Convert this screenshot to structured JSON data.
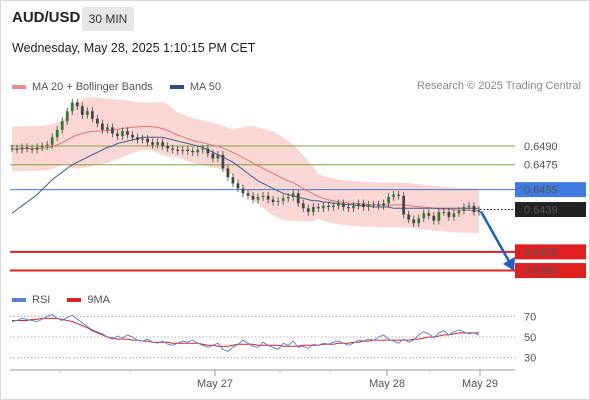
{
  "header": {
    "symbol": "AUD/USD",
    "interval": "30 MIN",
    "timestamp": "Wednesday, May 28, 2025 1:10:15 PM CET"
  },
  "legend": {
    "bollinger": {
      "label": "MA 20 + Bollinger Bands",
      "color": "#f28b82"
    },
    "ma50": {
      "label": "MA 50",
      "color": "#2c4e8a"
    },
    "copyright": "Research © 2025 Trading Central"
  },
  "rsi_legend": {
    "rsi": {
      "label": "RSI",
      "color": "#5b7fd6"
    },
    "ma9": {
      "label": "9MA",
      "color": "#e02020"
    }
  },
  "chart_data": {
    "type": "candlestick",
    "price_axis": {
      "min": 0.638,
      "max": 0.6535
    },
    "x_labels": [
      "May 27",
      "May 28",
      "May 29"
    ],
    "levels": [
      {
        "value": 0.649,
        "label": "0.6490",
        "kind": "target",
        "color": "#7aa83c"
      },
      {
        "value": 0.6475,
        "label": "0.6475",
        "kind": "target",
        "color": "#7aa83c"
      },
      {
        "value": 0.6455,
        "label": "0.6455",
        "kind": "pivot",
        "color": "#3d7be0"
      },
      {
        "value": 0.6439,
        "label": "0.6439",
        "kind": "last",
        "color": "#222222"
      },
      {
        "value": 0.6405,
        "label": "0.6405",
        "kind": "support",
        "color": "#e02020"
      },
      {
        "value": 0.639,
        "label": "0.6390",
        "kind": "support",
        "color": "#e02020"
      }
    ],
    "closes": [
      0.6488,
      0.6487,
      0.6489,
      0.6488,
      0.6487,
      0.6489,
      0.649,
      0.6491,
      0.6497,
      0.6503,
      0.651,
      0.6518,
      0.6525,
      0.6522,
      0.6515,
      0.6518,
      0.6512,
      0.6508,
      0.6503,
      0.6505,
      0.65,
      0.6498,
      0.6502,
      0.6499,
      0.6497,
      0.6495,
      0.6496,
      0.6493,
      0.6491,
      0.6493,
      0.649,
      0.6488,
      0.6487,
      0.6486,
      0.6487,
      0.6486,
      0.6485,
      0.6487,
      0.6488,
      0.6484,
      0.648,
      0.6483,
      0.6472,
      0.6465,
      0.646,
      0.6456,
      0.6452,
      0.645,
      0.6447,
      0.6449,
      0.645,
      0.6447,
      0.6445,
      0.6446,
      0.6448,
      0.6449,
      0.6452,
      0.6444,
      0.644,
      0.6437,
      0.6441,
      0.644,
      0.6442,
      0.6441,
      0.6442,
      0.6444,
      0.6441,
      0.644,
      0.6442,
      0.6444,
      0.6441,
      0.6443,
      0.6443,
      0.6442,
      0.6444,
      0.6449,
      0.6451,
      0.645,
      0.6435,
      0.6431,
      0.6428,
      0.6432,
      0.6436,
      0.6434,
      0.643,
      0.6437,
      0.6437,
      0.6433,
      0.6436,
      0.6438,
      0.6441,
      0.6442,
      0.6437,
      0.6439
    ],
    "ma50": [
      0.6436,
      0.6439,
      0.6442,
      0.6445,
      0.6448,
      0.6451,
      0.6455,
      0.6459,
      0.6463,
      0.6466,
      0.6469,
      0.6472,
      0.6475,
      0.6477,
      0.6479,
      0.6481,
      0.6483,
      0.6485,
      0.6487,
      0.6489,
      0.649,
      0.6492,
      0.6493,
      0.6494,
      0.6495,
      0.6496,
      0.6497,
      0.6497,
      0.6497,
      0.6497,
      0.6497,
      0.6496,
      0.6495,
      0.6494,
      0.6493,
      0.6492,
      0.6491,
      0.649,
      0.6489,
      0.6487,
      0.6485,
      0.6483,
      0.6481,
      0.6479,
      0.6477,
      0.6474,
      0.6471,
      0.6468,
      0.6465,
      0.6462,
      0.646,
      0.6458,
      0.6456,
      0.6454,
      0.6452,
      0.6451,
      0.645,
      0.6449,
      0.6448,
      0.6447,
      0.6446,
      0.6446,
      0.6445,
      0.6445,
      0.6444,
      0.6444,
      0.6443,
      0.6443,
      0.6443,
      0.6442,
      0.6442,
      0.6442,
      0.6441,
      0.6441,
      0.6441,
      0.6441,
      0.644,
      0.644,
      0.644,
      0.644,
      0.644,
      0.644,
      0.644,
      0.644,
      0.644,
      0.644,
      0.644,
      0.644,
      0.644,
      0.644,
      0.644,
      0.644,
      0.644,
      0.644
    ],
    "projection": {
      "from": 0.6439,
      "to": 0.6393
    },
    "rsi": {
      "levels": [
        70,
        50,
        30
      ],
      "values": [
        65,
        66,
        68,
        67,
        66,
        65,
        67,
        70,
        72,
        68,
        66,
        69,
        71,
        67,
        64,
        60,
        57,
        55,
        53,
        50,
        48,
        51,
        49,
        52,
        50,
        47,
        46,
        48,
        45,
        44,
        46,
        43,
        42,
        44,
        46,
        45,
        47,
        44,
        42,
        40,
        42,
        44,
        38,
        36,
        40,
        43,
        47,
        44,
        41,
        40,
        45,
        42,
        40,
        38,
        44,
        42,
        46,
        40,
        41,
        39,
        43,
        42,
        44,
        43,
        45,
        46,
        44,
        42,
        44,
        47,
        46,
        48,
        47,
        50,
        52,
        48,
        46,
        44,
        48,
        45,
        47,
        52,
        55,
        53,
        49,
        54,
        56,
        52,
        55,
        57,
        55,
        53,
        54,
        52
      ],
      "ma9": [
        66,
        66,
        66,
        66,
        67,
        67,
        68,
        68,
        68,
        68,
        67,
        66,
        65,
        63,
        61,
        59,
        56,
        54,
        52,
        50,
        49,
        48,
        48,
        48,
        47,
        47,
        46,
        46,
        45,
        45,
        45,
        45,
        44,
        44,
        44,
        44,
        44,
        44,
        43,
        42,
        42,
        41,
        41,
        41,
        42,
        43,
        43,
        43,
        43,
        42,
        42,
        42,
        42,
        42,
        41,
        41,
        41,
        41,
        42,
        42,
        42,
        42,
        43,
        43,
        43,
        44,
        44,
        44,
        45,
        45,
        46,
        46,
        47,
        47,
        47,
        47,
        47,
        47,
        47,
        47,
        48,
        48,
        49,
        50,
        50,
        51,
        52,
        52,
        53,
        54,
        54,
        54,
        54,
        54
      ]
    }
  }
}
